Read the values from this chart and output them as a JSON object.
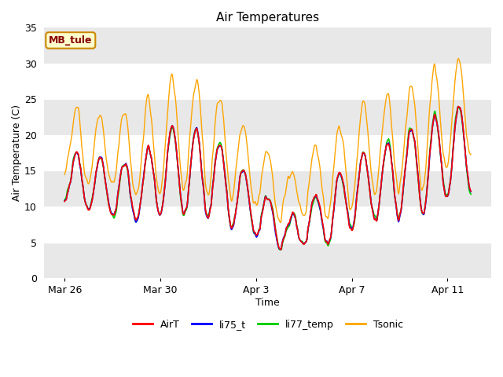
{
  "title": "Air Temperatures",
  "xlabel": "Time",
  "ylabel": "Air Temperature (C)",
  "ylim": [
    0,
    35
  ],
  "annotation_text": "MB_tule",
  "annotation_bg": "#ffffcc",
  "annotation_border": "#cc8800",
  "annotation_text_color": "#880000",
  "plot_bg": "#ffffff",
  "band_color": "#e8e8e8",
  "series_colors": {
    "AirT": "#ff0000",
    "li75_t": "#0000ff",
    "li77_temp": "#00cc00",
    "Tsonic": "#ffa500"
  },
  "xtick_labels": [
    "Mar 26",
    "Mar 30",
    "Apr 3",
    "Apr 7",
    "Apr 11"
  ],
  "legend_labels": [
    "AirT",
    "li75_t",
    "li77_temp",
    "Tsonic"
  ]
}
